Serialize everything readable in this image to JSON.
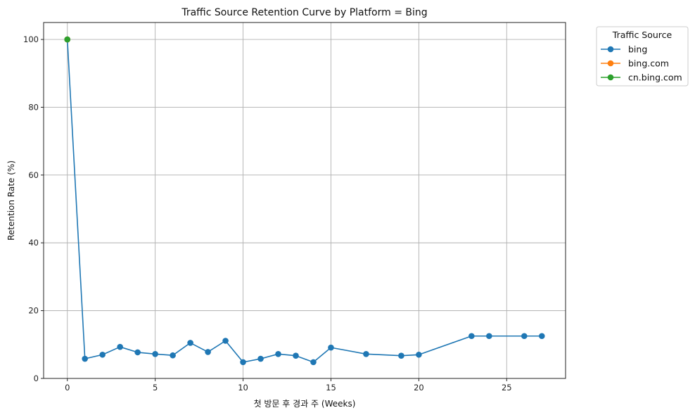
{
  "chart_data": {
    "type": "line",
    "title": "Traffic Source Retention Curve by Platform = Bing",
    "xlabel": "첫 방문 후 경과 주 (Weeks)",
    "ylabel": "Retention Rate (%)",
    "xlim": [
      -1.35,
      28.35
    ],
    "ylim": [
      0,
      105
    ],
    "xticks": [
      0,
      5,
      10,
      15,
      20,
      25
    ],
    "yticks": [
      0,
      20,
      40,
      60,
      80,
      100
    ],
    "grid": true,
    "legend": {
      "title": "Traffic Source",
      "placement": "outside-top-right"
    },
    "series": [
      {
        "name": "bing",
        "color": "#1f77b4",
        "marker": "circle",
        "x": [
          0,
          1,
          2,
          3,
          4,
          5,
          6,
          7,
          8,
          9,
          10,
          11,
          12,
          13,
          14,
          15,
          17,
          19,
          20,
          23,
          24,
          26,
          27
        ],
        "y": [
          100,
          5.8,
          7.0,
          9.3,
          7.7,
          7.2,
          6.8,
          10.5,
          7.8,
          11.1,
          4.8,
          5.8,
          7.2,
          6.7,
          4.8,
          9.1,
          7.2,
          6.7,
          7.0,
          12.5,
          12.5,
          12.5,
          12.5
        ]
      },
      {
        "name": "bing.com",
        "color": "#ff7f0e",
        "marker": "circle",
        "x": [
          0
        ],
        "y": [
          100
        ]
      },
      {
        "name": "cn.bing.com",
        "color": "#2ca02c",
        "marker": "circle",
        "x": [
          0
        ],
        "y": [
          100
        ]
      }
    ]
  }
}
